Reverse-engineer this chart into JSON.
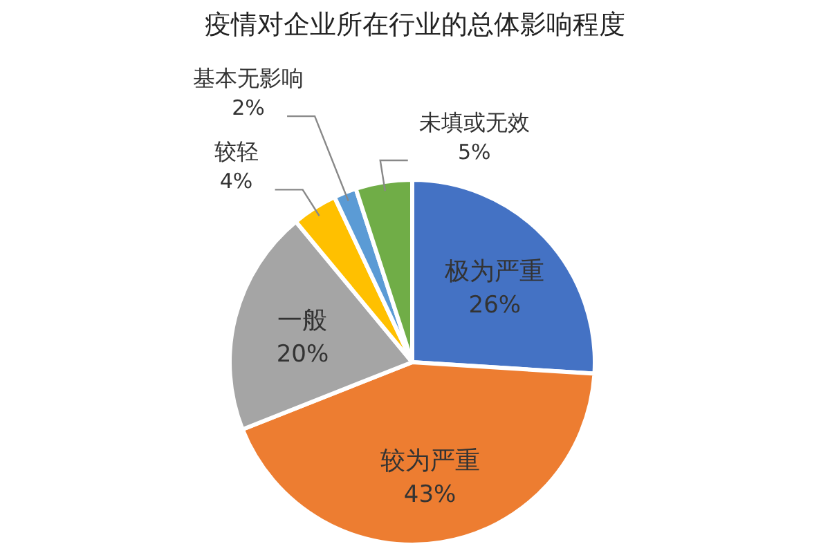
{
  "chart_data": {
    "type": "pie",
    "title": "疫情对企业所在行业的总体影响程度",
    "categories": [
      "极为严重",
      "较为严重",
      "一般",
      "较轻",
      "基本无影响",
      "未填或无效"
    ],
    "values": [
      26,
      43,
      20,
      4,
      2,
      5
    ],
    "value_labels": [
      "26%",
      "43%",
      "20%",
      "4%",
      "2%",
      "5%"
    ],
    "colors": [
      "#4472c4",
      "#ed7d31",
      "#a5a5a5",
      "#ffc000",
      "#5b9bd5",
      "#70ad47"
    ]
  }
}
